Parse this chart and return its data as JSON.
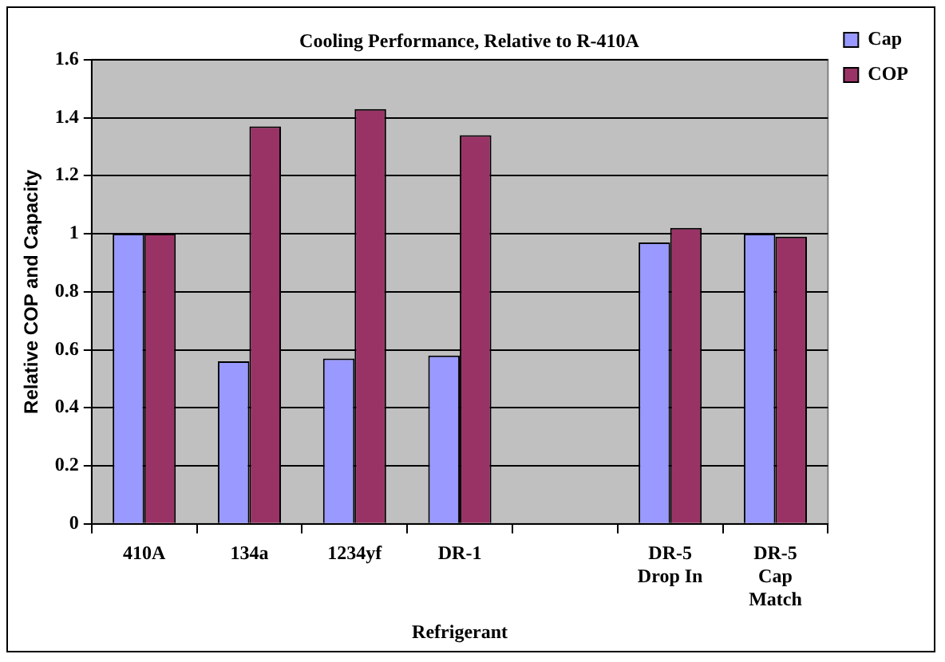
{
  "chart_data": {
    "type": "bar",
    "title": "Cooling Performance, Relative to R-410A",
    "xlabel": "Refrigerant",
    "ylabel": "Relative COP and Capacity",
    "categories": [
      "410A",
      "134a",
      "1234yf",
      "DR-1",
      null,
      "DR-5 Drop In",
      "DR-5 Cap Match"
    ],
    "series": [
      {
        "name": "Cap",
        "color": "#9999ff",
        "values": [
          1.0,
          0.56,
          0.57,
          0.58,
          null,
          0.97,
          1.0
        ]
      },
      {
        "name": "COP",
        "color": "#993366",
        "values": [
          1.0,
          1.37,
          1.43,
          1.34,
          null,
          1.02,
          0.99
        ]
      }
    ],
    "ylim": [
      0,
      1.6
    ],
    "yticks": [
      0,
      0.2,
      0.4,
      0.6,
      0.8,
      1,
      1.2,
      1.4,
      1.6
    ],
    "grid": "y",
    "legend": "top right"
  }
}
